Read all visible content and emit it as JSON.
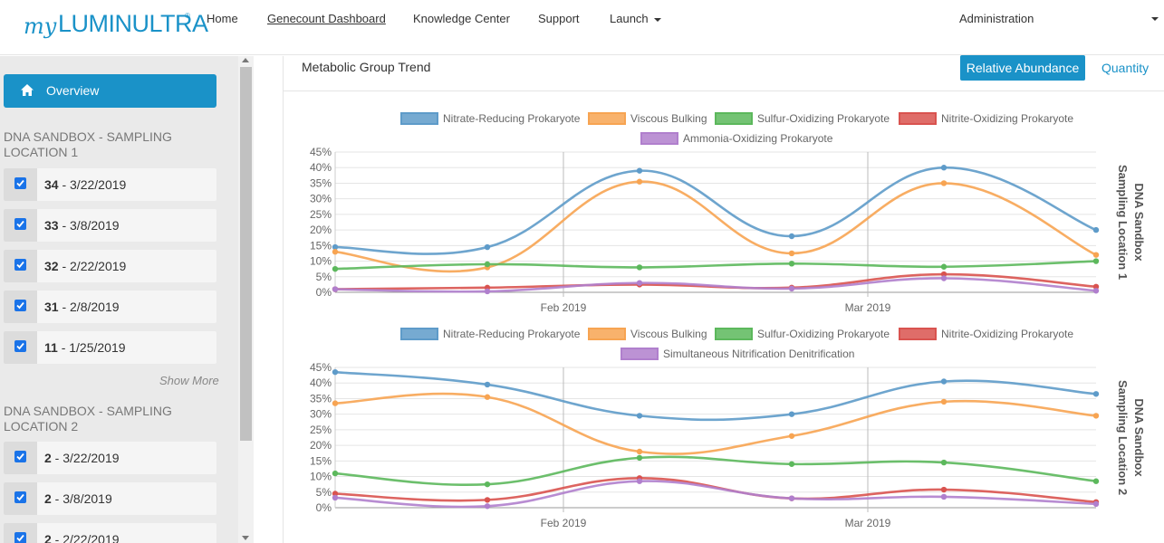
{
  "nav": {
    "logo_my": "my",
    "logo_name": "LUMINULTRA",
    "logo_reg": "®",
    "items": [
      "Home",
      "Genecount Dashboard",
      "Knowledge Center",
      "Support",
      "Launch"
    ],
    "admin": "Administration"
  },
  "sidebar": {
    "overview": "Overview",
    "locations": [
      {
        "title": "DNA SANDBOX - SAMPLING LOCATION 1",
        "samples": [
          {
            "id": "34",
            "date": " - 3/22/2019"
          },
          {
            "id": "33",
            "date": " - 3/8/2019"
          },
          {
            "id": "32",
            "date": " - 2/22/2019"
          },
          {
            "id": "31",
            "date": " - 2/8/2019"
          },
          {
            "id": "11",
            "date": " - 1/25/2019"
          }
        ],
        "show_more": "Show More"
      },
      {
        "title": "DNA SANDBOX - SAMPLING LOCATION 2",
        "samples": [
          {
            "id": "2",
            "date": " - 3/22/2019"
          },
          {
            "id": "2",
            "date": " - 3/8/2019"
          },
          {
            "id": "2",
            "date": " - 2/22/2019"
          }
        ]
      }
    ]
  },
  "main": {
    "title": "Metabolic Group Trend",
    "tabs": {
      "relative": "Relative Abundance",
      "quantity": "Quantity"
    }
  },
  "colors": {
    "blue": "#5e9bc9",
    "orange": "#f7a452",
    "green": "#5cb85c",
    "red": "#d9534f",
    "purple": "#b07fcd",
    "accent": "#1a92c8"
  },
  "chart_data": [
    {
      "type": "line",
      "side_label": [
        "DNA Sandbox",
        "Sampling Location 1"
      ],
      "x": [
        "1/25/2019",
        "2/8/2019",
        "2/22/2019",
        "3/8/2019",
        "3/22/2019"
      ],
      "x_ticks": [
        "Feb 2019",
        "Mar 2019"
      ],
      "y_ticks": [
        "0%",
        "5%",
        "10%",
        "15%",
        "20%",
        "25%",
        "30%",
        "35%",
        "40%",
        "45%"
      ],
      "ylim": [
        0,
        45
      ],
      "series": [
        {
          "name": "Nitrate-Reducing Prokaryote",
          "color": "#5e9bc9",
          "values": [
            14.5,
            39,
            18,
            40,
            20
          ]
        },
        {
          "name": "Viscous Bulking",
          "color": "#f7a452",
          "values": [
            8,
            35.5,
            12.5,
            35,
            12
          ]
        },
        {
          "name": "Sulfur-Oxidizing Prokaryote",
          "color": "#5cb85c",
          "values": [
            9,
            8,
            9.2,
            8.2,
            10
          ]
        },
        {
          "name": "Nitrite-Oxidizing Prokaryote",
          "color": "#d9534f",
          "values": [
            1.5,
            2.5,
            1.5,
            5.8,
            1.8
          ]
        },
        {
          "name": "Ammonia-Oxidizing Prokaryote",
          "color": "#b07fcd",
          "values": [
            0.3,
            3,
            1.2,
            4.5,
            0.5
          ]
        }
      ],
      "first_point_estimates": {
        "x": "1/11/2019",
        "values": [
          14.5,
          13,
          7.5,
          1,
          1
        ]
      }
    },
    {
      "type": "line",
      "side_label": [
        "DNA Sandbox",
        "Sampling Location 2"
      ],
      "x": [
        "1/25/2019",
        "2/8/2019",
        "2/22/2019",
        "3/8/2019",
        "3/22/2019"
      ],
      "x_ticks": [
        "Feb 2019",
        "Mar 2019"
      ],
      "y_ticks": [
        "0%",
        "5%",
        "10%",
        "15%",
        "20%",
        "25%",
        "30%",
        "35%",
        "40%",
        "45%"
      ],
      "ylim": [
        0,
        45
      ],
      "series": [
        {
          "name": "Nitrate-Reducing Prokaryote",
          "color": "#5e9bc9",
          "values": [
            39.5,
            29.5,
            30,
            40.5,
            36.5
          ]
        },
        {
          "name": "Viscous Bulking",
          "color": "#f7a452",
          "values": [
            35.5,
            18,
            23,
            34,
            29.5
          ]
        },
        {
          "name": "Sulfur-Oxidizing Prokaryote",
          "color": "#5cb85c",
          "values": [
            7.5,
            16,
            14,
            14.5,
            8.5
          ]
        },
        {
          "name": "Nitrite-Oxidizing Prokaryote",
          "color": "#d9534f",
          "values": [
            2.5,
            9.5,
            3,
            5.8,
            1.8
          ]
        },
        {
          "name": "Simultaneous Nitrification Denitrification",
          "color": "#b07fcd",
          "values": [
            0.5,
            8.5,
            3,
            3.5,
            1.2
          ]
        }
      ],
      "first_point_estimates": {
        "x": "1/11/2019",
        "values": [
          43.5,
          33.5,
          11,
          4.5,
          3.2
        ]
      }
    }
  ]
}
